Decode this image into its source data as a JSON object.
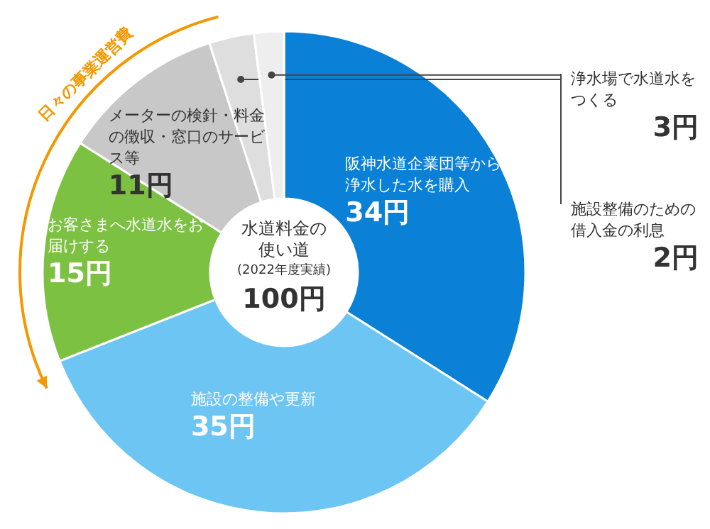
{
  "chart_data": {
    "type": "donut",
    "title": "水道料金の使い道",
    "subtitle": "(2022年度実績)",
    "categories": [
      "阪神水道企業団等から浄水した水を購入",
      "施設の整備や更新",
      "お客さまへ水道水をお届けする",
      "メーターの検針・料金の徴収・窓口のサービス等",
      "浄水場で水道水をつくる",
      "施設整備のための借入金の利息"
    ],
    "values": [
      34,
      35,
      15,
      11,
      3,
      2
    ],
    "colors": [
      "#0a80d6",
      "#6cc5f3",
      "#7dc142",
      "#c8c8c8",
      "#dedede",
      "#eeeeee"
    ],
    "value_labels": [
      "34円",
      "35円",
      "15円",
      "11円",
      "3円",
      "2円"
    ],
    "annotations": [
      "100円",
      "日々の事業運営費"
    ]
  }
}
